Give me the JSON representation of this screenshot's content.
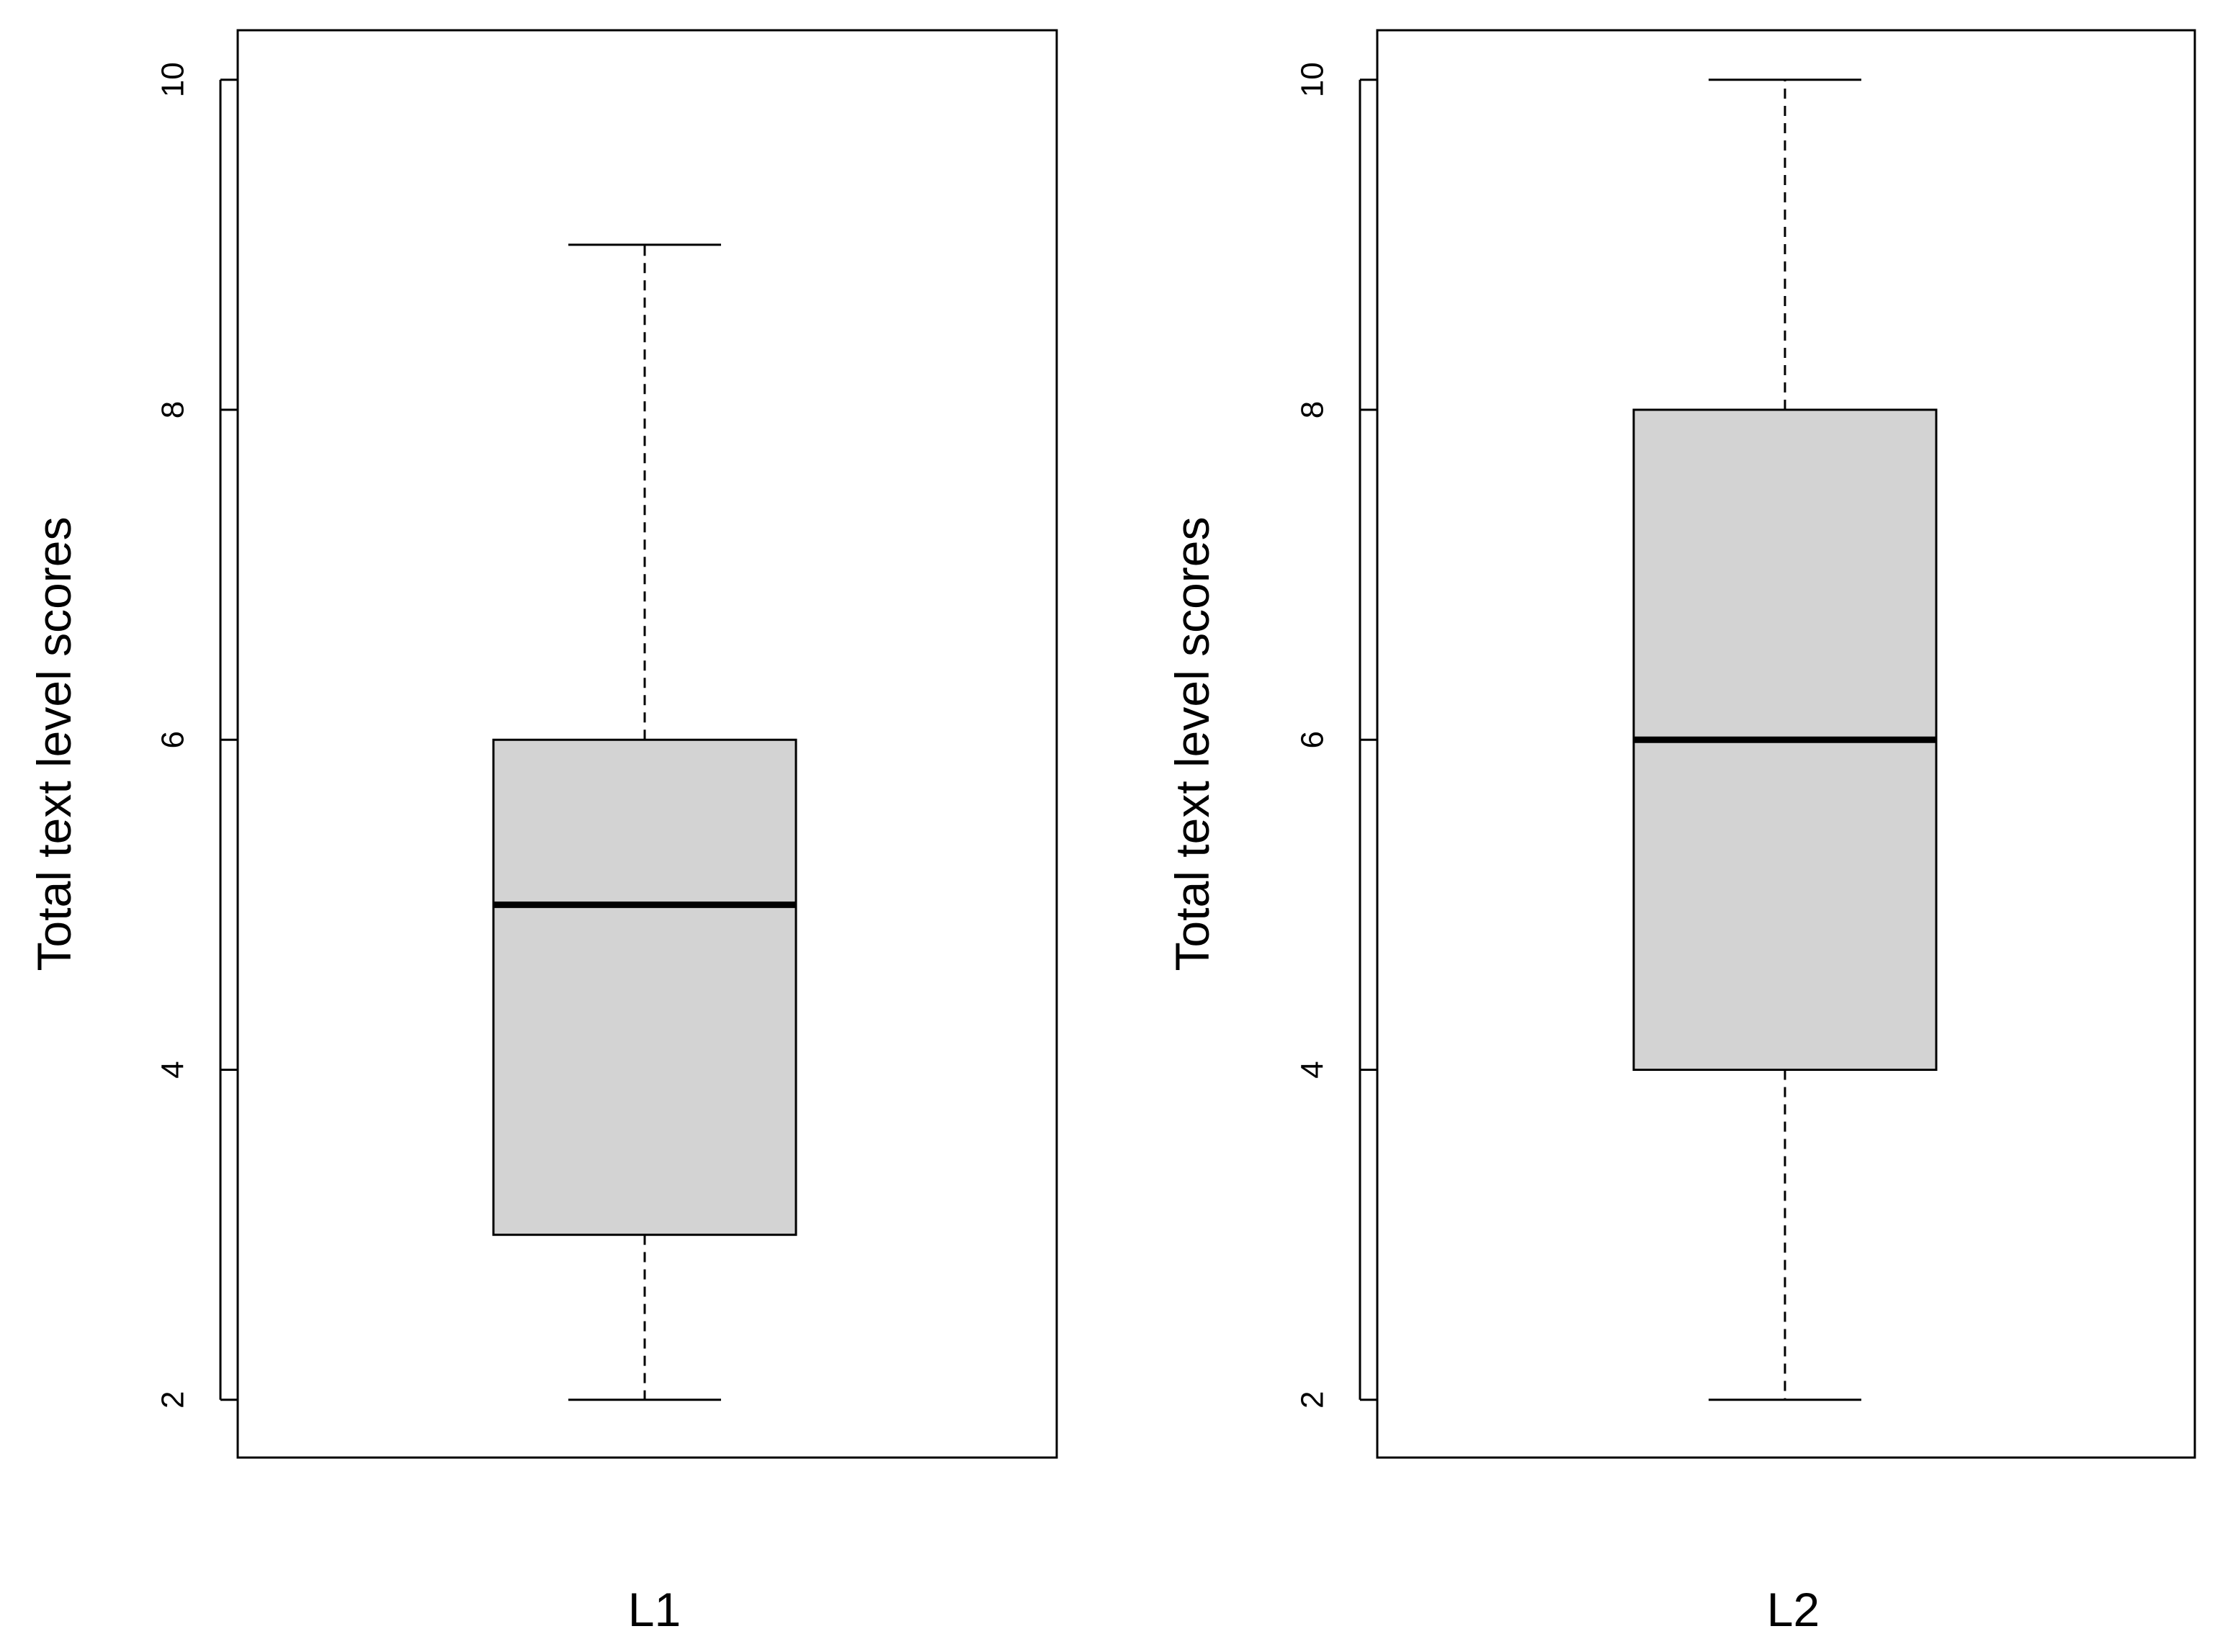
{
  "chart_data": [
    {
      "type": "boxplot",
      "ylabel": "Total text level scores",
      "xlabel": "L1",
      "ylim": [
        1.65,
        10.3
      ],
      "yticks": [
        2,
        4,
        6,
        8,
        10
      ],
      "box": {
        "whisker_low": 2,
        "q1": 3,
        "median": 5,
        "q3": 6,
        "whisker_high": 9
      },
      "box_color": "#d3d3d3"
    },
    {
      "type": "boxplot",
      "ylabel": "Total text level scores",
      "xlabel": "L2",
      "ylim": [
        1.65,
        10.3
      ],
      "yticks": [
        2,
        4,
        6,
        8,
        10
      ],
      "box": {
        "whisker_low": 2,
        "q1": 4,
        "median": 6,
        "q3": 8,
        "whisker_high": 10
      },
      "box_color": "#d3d3d3"
    }
  ]
}
